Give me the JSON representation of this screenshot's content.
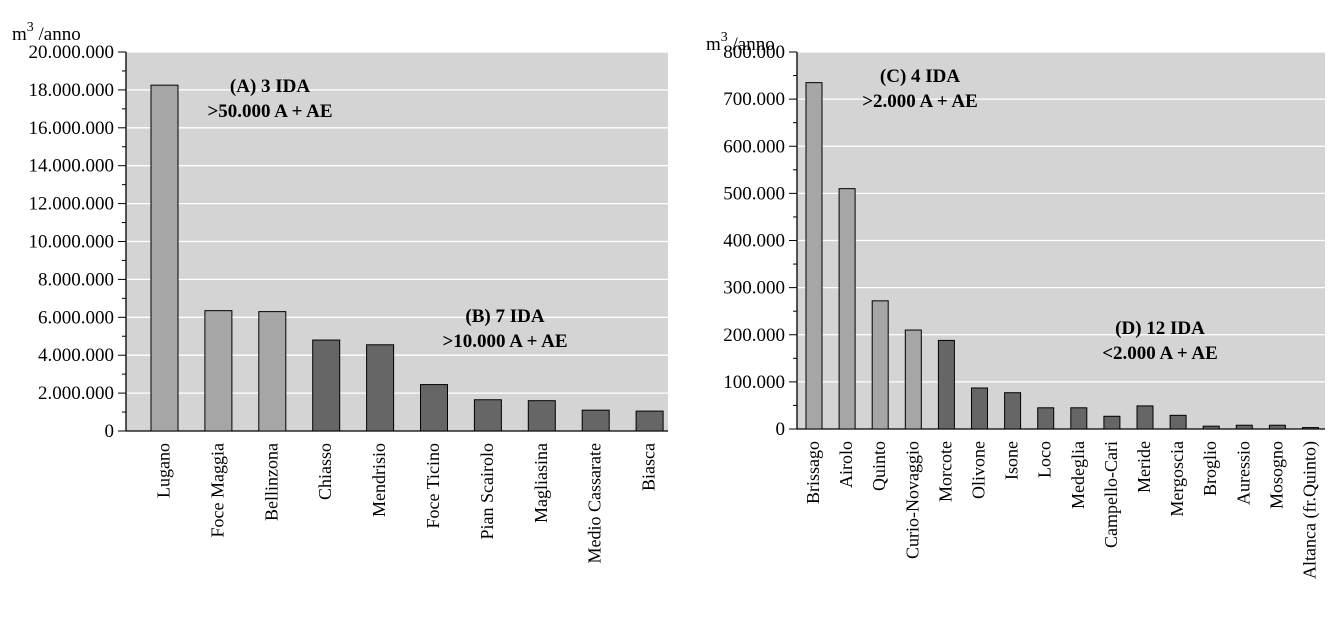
{
  "chart_data": [
    {
      "type": "bar",
      "ylabel": "/anno",
      "unit_prefix": "m",
      "unit_exp": "3",
      "ylim": [
        0,
        20000000
      ],
      "yticks": [
        "0",
        "2.000.000",
        "4.000.000",
        "6.000.000",
        "8.000.000",
        "10.000.000",
        "12.000.000",
        "14.000.000",
        "16.000.000",
        "18.000.000",
        "20.000.000"
      ],
      "grid": true,
      "plot_bg": "#d4d4d4",
      "categories": [
        "Lugano",
        "Foce Maggia",
        "Bellinzona",
        "Chiasso",
        "Mendrisio",
        "Foce Ticino",
        "Pian Scairolo",
        "Magliasina",
        "Medio Cassarate",
        "Biasca"
      ],
      "values": [
        18250000,
        6350000,
        6300000,
        4800000,
        4550000,
        2450000,
        1650000,
        1600000,
        1100000,
        1050000
      ],
      "groups": [
        "A",
        "A",
        "A",
        "B",
        "B",
        "B",
        "B",
        "B",
        "B",
        "B"
      ],
      "colors": {
        "A": "#a6a6a6",
        "B": "#666666"
      },
      "annotations": [
        {
          "line1": "(A) 3 IDA",
          "line2": ">50.000 A + AE"
        },
        {
          "line1": "(B) 7 IDA",
          "line2": ">10.000 A + AE"
        }
      ]
    },
    {
      "type": "bar",
      "ylabel": "/anno",
      "unit_prefix": "m",
      "unit_exp": "3",
      "ylim": [
        0,
        800000
      ],
      "yticks": [
        "0",
        "100.000",
        "200.000",
        "300.000",
        "400.000",
        "500.000",
        "600.000",
        "700.000",
        "800.000"
      ],
      "grid": true,
      "plot_bg": "#d4d4d4",
      "categories": [
        "Brissago",
        "Airolo",
        "Quinto",
        "Curio-Novaggio",
        "Morcote",
        "Olivone",
        "Isone",
        "Loco",
        "Medeglia",
        "Campello-Cari",
        "Meride",
        "Mergoscia",
        "Broglio",
        "Auressio",
        "Mosogno",
        "Altanca (fr.Quinto)"
      ],
      "values": [
        735000,
        510000,
        272000,
        210000,
        188000,
        87000,
        77000,
        45000,
        45000,
        27000,
        49000,
        29000,
        6000,
        8000,
        8000,
        3000
      ],
      "groups": [
        "C",
        "C",
        "C",
        "C",
        "D",
        "D",
        "D",
        "D",
        "D",
        "D",
        "D",
        "D",
        "D",
        "D",
        "D",
        "D"
      ],
      "colors": {
        "C": "#a6a6a6",
        "D": "#666666"
      },
      "annotations": [
        {
          "line1": "(C) 4 IDA",
          "line2": ">2.000 A + AE"
        },
        {
          "line1": "(D) 12 IDA",
          "line2": "<2.000 A + AE"
        }
      ]
    }
  ]
}
